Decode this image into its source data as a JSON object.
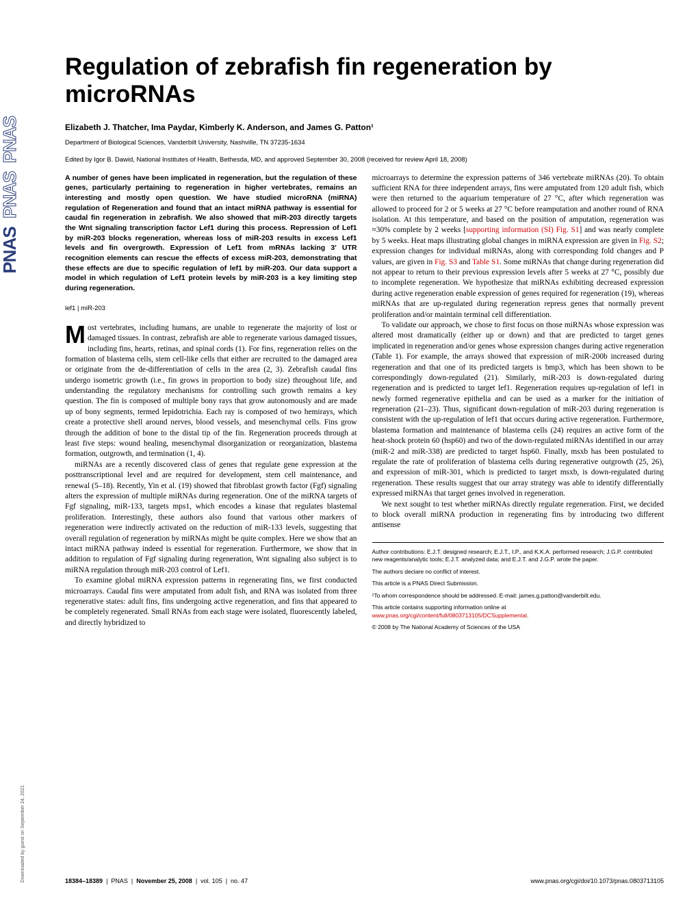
{
  "sidebar": {
    "logo_solid": "PNAS",
    "logo_outline1": "PNAS",
    "logo_outline2": "PNAS"
  },
  "title": "Regulation of zebrafish fin regeneration by microRNAs",
  "authors": "Elizabeth J. Thatcher, Ima Paydar, Kimberly K. Anderson, and James G. Patton¹",
  "affiliation": "Department of Biological Sciences, Vanderbilt University, Nashville, TN 37235-1634",
  "edited_by": "Edited by Igor B. Dawid, National Institutes of Health, Bethesda, MD, and approved September 30, 2008 (received for review April 18, 2008)",
  "abstract": "A number of genes have been implicated in regeneration, but the regulation of these genes, particularly pertaining to regeneration in higher vertebrates, remains an interesting and mostly open question. We have studied microRNA (miRNA) regulation of Regeneration and found that an intact miRNA pathway is essential for caudal fin regeneration in zebrafish. We also showed that miR-203 directly targets the Wnt signaling transcription factor Lef1 during this process. Repression of Lef1 by miR-203 blocks regeneration, whereas loss of miR-203 results in excess Lef1 levels and fin overgrowth. Expression of Lef1 from mRNAs lacking 3' UTR recognition elements can rescue the effects of excess miR-203, demonstrating that these effects are due to specific regulation of lef1 by miR-203. Our data support a model in which regulation of Lef1 protein levels by miR-203 is a key limiting step during regeneration.",
  "keywords": "lef1 | miR-203",
  "col1_p1_start": "M",
  "col1_p1": "ost vertebrates, including humans, are unable to regenerate the majority of lost or damaged tissues. In contrast, zebrafish are able to regenerate various damaged tissues, including fins, hearts, retinas, and spinal cords (1). For fins, regeneration relies on the formation of blastema cells, stem cell-like cells that either are recruited to the damaged area or originate from the de-differentiation of cells in the area (2, 3). Zebrafish caudal fins undergo isometric growth (i.e., fin grows in proportion to body size) throughout life, and understanding the regulatory mechanisms for controlling such growth remains a key question. The fin is composed of multiple bony rays that grow autonomously and are made up of bony segments, termed lepidotrichia. Each ray is composed of two hemirays, which create a protective shell around nerves, blood vessels, and mesenchymal cells. Fins grow through the addition of bone to the distal tip of the fin. Regeneration proceeds through at least five steps: wound healing, mesenchymal disorganization or reorganization, blastema formation, outgrowth, and termination (1, 4).",
  "col1_p2": "miRNAs are a recently discovered class of genes that regulate gene expression at the posttranscriptional level and are required for development, stem cell maintenance, and renewal (5–18). Recently, Yin et al. (19) showed that fibroblast growth factor (Fgf) signaling alters the expression of multiple miRNAs during regeneration. One of the miRNA targets of Fgf signaling, miR-133, targets mps1, which encodes a kinase that regulates blastemal proliferation. Interestingly, these authors also found that various other markers of regeneration were indirectly activated on the reduction of miR-133 levels, suggesting that overall regulation of regeneration by miRNAs might be quite complex. Here we show that an intact miRNA pathway indeed is essential for regeneration. Furthermore, we show that in addition to regulation of Fgf signaling during regeneration, Wnt signaling also subject is to miRNA regulation through miR-203 control of Lef1.",
  "col1_p3": "To examine global miRNA expression patterns in regenerating fins, we first conducted microarrays. Caudal fins were amputated from adult fish, and RNA was isolated from three regenerative states: adult fins, fins undergoing active regeneration, and fins that appeared to be completely regenerated. Small RNAs from each stage were isolated, fluorescently labeled, and directly hybridized to",
  "col2_p1a": "microarrays to determine the expression patterns of 346 vertebrate miRNAs (20). To obtain sufficient RNA for three independent arrays, fins were amputated from 120 adult fish, which were then returned to the aquarium temperature of 27 °C, after which regeneration was allowed to proceed for 2 or 5 weeks at 27 °C before reamputation and another round of RNA isolation. At this temperature, and based on the position of amputation, regeneration was ≈30% complete by 2 weeks [",
  "col2_p1_link1": "supporting information (SI) Fig. S1",
  "col2_p1b": "] and was nearly complete by 5 weeks. Heat maps illustrating global changes in miRNA expression are given in ",
  "col2_p1_link2": "Fig. S2",
  "col2_p1c": "; expression changes for individual miRNAs, along with corresponding fold changes and P values, are given in ",
  "col2_p1_link3": "Fig. S3",
  "col2_p1d": " and ",
  "col2_p1_link4": "Table S1",
  "col2_p1e": ". Some miRNAs that change during regeneration did not appear to return to their previous expression levels after 5 weeks at 27 °C, possibly due to incomplete regeneration. We hypothesize that miRNAs exhibiting decreased expression during active regeneration enable expression of genes required for regeneration (19), whereas miRNAs that are up-regulated during regeneration repress genes that normally prevent proliferation and/or maintain terminal cell differentiation.",
  "col2_p2": "To validate our approach, we chose to first focus on those miRNAs whose expression was altered most dramatically (either up or down) and that are predicted to target genes implicated in regeneration and/or genes whose expression changes during active regeneration (Table 1). For example, the arrays showed that expression of miR-200b increased during regeneration and that one of its predicted targets is bmp3, which has been shown to be correspondingly down-regulated (21). Similarly, miR-203 is down-regulated during regeneration and is predicted to target lef1. Regeneration requires up-regulation of lef1 in newly formed regenerative epithelia and can be used as a marker for the initiation of regeneration (21–23). Thus, significant down-regulation of miR-203 during regeneration is consistent with the up-regulation of lef1 that occurs during active regeneration. Furthermore, blastema formation and maintenance of blastema cells (24) requires an active form of the heat-shock protein 60 (hsp60) and two of the down-regulated miRNAs identified in our array (miR-2 and miR-338) are predicted to target hsp60. Finally, msxb has been postulated to regulate the rate of proliferation of blastema cells during regenerative outgrowth (25, 26), and expression of miR-301, which is predicted to target msxb, is down-regulated during regeneration. These results suggest that our array strategy was able to identify differentially expressed miRNAs that target genes involved in regeneration.",
  "col2_p3": "We next sought to test whether miRNAs directly regulate regeneration. First, we decided to block overall miRNA production in regenerating fins by introducing two different antisense",
  "footnotes": {
    "contributions": "Author contributions: E.J.T. designed research; E.J.T., I.P., and K.K.A. performed research; J.G.P. contributed new reagents/analytic tools; E.J.T. analyzed data; and E.J.T. and J.G.P. wrote the paper.",
    "conflict": "The authors declare no conflict of interest.",
    "submission": "This article is a PNAS Direct Submission.",
    "correspondence": "¹To whom correspondence should be addressed. E-mail: james.g.patton@vanderbilt.edu.",
    "si_a": "This article contains supporting information online at ",
    "si_link": "www.pnas.org/cgi/content/full/0803713105/DCSupplemental",
    "si_b": ".",
    "copyright": "© 2008 by The National Academy of Sciences of the USA"
  },
  "page_footer": {
    "left_pages": "18384–18389",
    "left_pnas": "PNAS",
    "left_date": "November 25, 2008",
    "left_vol": "vol. 105",
    "left_no": "no. 47",
    "right": "www.pnas.org/cgi/doi/10.1073/pnas.0803713105"
  },
  "download_note": "Downloaded by guest on September 24, 2021"
}
